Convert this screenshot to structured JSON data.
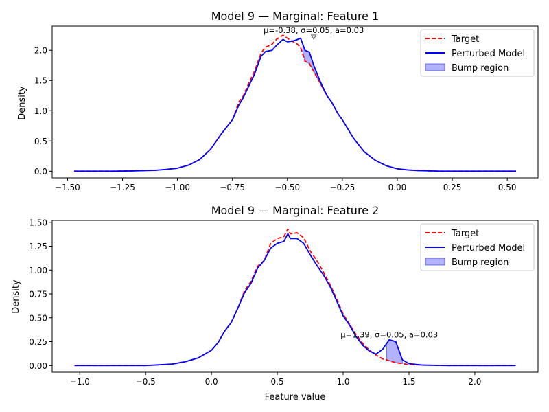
{
  "chart_data": [
    {
      "type": "line",
      "title": "Model 9 — Marginal: Feature 1",
      "xlabel": "",
      "ylabel": "Density",
      "xlim": [
        -1.57,
        0.64
      ],
      "ylim": [
        -0.11,
        2.4
      ],
      "xticks": [
        {
          "v": -1.5,
          "label": "−1.50"
        },
        {
          "v": -1.25,
          "label": "−1.25"
        },
        {
          "v": -1.0,
          "label": "−1.00"
        },
        {
          "v": -0.75,
          "label": "−0.75"
        },
        {
          "v": -0.5,
          "label": "−0.50"
        },
        {
          "v": -0.25,
          "label": "−0.25"
        },
        {
          "v": 0.0,
          "label": "0.00"
        },
        {
          "v": 0.25,
          "label": "0.25"
        },
        {
          "v": 0.5,
          "label": "0.50"
        }
      ],
      "yticks": [
        {
          "v": 0.0,
          "label": "0.0"
        },
        {
          "v": 0.5,
          "label": "0.5"
        },
        {
          "v": 1.0,
          "label": "1.0"
        },
        {
          "v": 1.5,
          "label": "1.5"
        },
        {
          "v": 2.0,
          "label": "2.0"
        }
      ],
      "series": [
        {
          "name": "Target",
          "color": "#ff0000",
          "dash": true,
          "x": [
            -1.47,
            -1.3,
            -1.2,
            -1.1,
            -1.05,
            -1.0,
            -0.95,
            -0.9,
            -0.85,
            -0.8,
            -0.75,
            -0.72,
            -0.7,
            -0.67,
            -0.65,
            -0.62,
            -0.6,
            -0.57,
            -0.55,
            -0.52,
            -0.5,
            -0.48,
            -0.46,
            -0.44,
            -0.42,
            -0.4,
            -0.38,
            -0.35,
            -0.32,
            -0.3,
            -0.27,
            -0.25,
            -0.2,
            -0.15,
            -0.1,
            -0.05,
            0.0,
            0.05,
            0.1,
            0.2,
            0.3,
            0.4,
            0.54
          ],
          "y": [
            0.0,
            0.0,
            0.005,
            0.015,
            0.03,
            0.05,
            0.1,
            0.19,
            0.36,
            0.62,
            0.85,
            1.15,
            1.25,
            1.5,
            1.65,
            1.95,
            2.05,
            2.1,
            2.18,
            2.25,
            2.2,
            2.15,
            2.12,
            2.05,
            1.82,
            1.78,
            1.65,
            1.45,
            1.25,
            1.15,
            0.95,
            0.85,
            0.55,
            0.32,
            0.18,
            0.09,
            0.04,
            0.02,
            0.01,
            0.0,
            0.0,
            0.0,
            0.0
          ]
        },
        {
          "name": "Perturbed Model",
          "color": "#0000ff",
          "dash": false,
          "x": [
            -1.47,
            -1.3,
            -1.2,
            -1.1,
            -1.05,
            -1.0,
            -0.95,
            -0.9,
            -0.85,
            -0.8,
            -0.75,
            -0.72,
            -0.7,
            -0.67,
            -0.65,
            -0.62,
            -0.6,
            -0.57,
            -0.55,
            -0.52,
            -0.5,
            -0.48,
            -0.46,
            -0.44,
            -0.42,
            -0.4,
            -0.38,
            -0.35,
            -0.32,
            -0.3,
            -0.27,
            -0.25,
            -0.2,
            -0.15,
            -0.1,
            -0.05,
            0.0,
            0.05,
            0.1,
            0.2,
            0.3,
            0.4,
            0.54
          ],
          "y": [
            0.0,
            0.0,
            0.005,
            0.015,
            0.03,
            0.05,
            0.1,
            0.19,
            0.36,
            0.62,
            0.85,
            1.1,
            1.22,
            1.45,
            1.6,
            1.9,
            1.98,
            2.0,
            2.08,
            2.18,
            2.14,
            2.15,
            2.17,
            2.2,
            2.0,
            1.97,
            1.75,
            1.48,
            1.25,
            1.15,
            0.95,
            0.85,
            0.55,
            0.32,
            0.18,
            0.09,
            0.04,
            0.02,
            0.01,
            0.0,
            0.0,
            0.0,
            0.0
          ]
        }
      ],
      "bump_region": {
        "name": "Bump region",
        "color": "#0000ff",
        "opacity": 0.3,
        "x": [
          -0.43,
          -0.42,
          -0.4,
          -0.38,
          -0.35,
          -0.33
        ],
        "lower": [
          1.98,
          1.82,
          1.78,
          1.65,
          1.45,
          1.3
        ],
        "upper": [
          2.12,
          2.0,
          1.97,
          1.75,
          1.48,
          1.3
        ]
      },
      "annotation": {
        "text": "μ=-0.38, σ=0.05, a=0.03",
        "x": -0.38,
        "y": 2.22,
        "arrow": true
      },
      "legend": {
        "placement": "top-right",
        "entries": [
          "Target",
          "Perturbed Model",
          "Bump region"
        ]
      }
    },
    {
      "type": "line",
      "title": "Model 9 — Marginal: Feature 2",
      "xlabel": "Feature value",
      "ylabel": "Density",
      "xlim": [
        -1.21,
        2.48
      ],
      "ylim": [
        -0.07,
        1.52
      ],
      "xticks": [
        {
          "v": -1.0,
          "label": "−1.0"
        },
        {
          "v": -0.5,
          "label": "−0.5"
        },
        {
          "v": 0.0,
          "label": "0.0"
        },
        {
          "v": 0.5,
          "label": "0.5"
        },
        {
          "v": 1.0,
          "label": "1.0"
        },
        {
          "v": 1.5,
          "label": "1.5"
        },
        {
          "v": 2.0,
          "label": "2.0"
        }
      ],
      "yticks": [
        {
          "v": 0.0,
          "label": "0.00"
        },
        {
          "v": 0.25,
          "label": "0.25"
        },
        {
          "v": 0.5,
          "label": "0.50"
        },
        {
          "v": 0.75,
          "label": "0.75"
        },
        {
          "v": 1.0,
          "label": "1.00"
        },
        {
          "v": 1.25,
          "label": "1.25"
        },
        {
          "v": 1.5,
          "label": "1.50"
        }
      ],
      "series": [
        {
          "name": "Target",
          "color": "#ff0000",
          "dash": true,
          "x": [
            -1.04,
            -0.5,
            -0.3,
            -0.2,
            -0.1,
            0.0,
            0.05,
            0.1,
            0.15,
            0.2,
            0.25,
            0.3,
            0.35,
            0.4,
            0.45,
            0.5,
            0.55,
            0.58,
            0.6,
            0.65,
            0.7,
            0.75,
            0.8,
            0.85,
            0.9,
            0.95,
            1.0,
            1.05,
            1.1,
            1.15,
            1.2,
            1.25,
            1.3,
            1.35,
            1.4,
            1.45,
            1.5,
            1.6,
            1.8,
            2.0,
            2.31
          ],
          "y": [
            0.0,
            0.0,
            0.015,
            0.04,
            0.08,
            0.16,
            0.24,
            0.36,
            0.45,
            0.6,
            0.78,
            0.88,
            1.04,
            1.1,
            1.28,
            1.33,
            1.35,
            1.43,
            1.38,
            1.39,
            1.34,
            1.2,
            1.1,
            0.98,
            0.85,
            0.7,
            0.54,
            0.43,
            0.32,
            0.23,
            0.16,
            0.11,
            0.07,
            0.05,
            0.03,
            0.02,
            0.01,
            0.005,
            0.0,
            0.0,
            0.0
          ]
        },
        {
          "name": "Perturbed Model",
          "color": "#0000ff",
          "dash": false,
          "x": [
            -1.04,
            -0.5,
            -0.3,
            -0.2,
            -0.1,
            0.0,
            0.05,
            0.1,
            0.15,
            0.2,
            0.25,
            0.3,
            0.35,
            0.4,
            0.45,
            0.5,
            0.55,
            0.58,
            0.6,
            0.65,
            0.7,
            0.75,
            0.8,
            0.85,
            0.9,
            0.95,
            1.0,
            1.05,
            1.1,
            1.15,
            1.2,
            1.25,
            1.3,
            1.35,
            1.4,
            1.45,
            1.5,
            1.6,
            1.8,
            2.0,
            2.31
          ],
          "y": [
            0.0,
            0.0,
            0.015,
            0.04,
            0.08,
            0.16,
            0.24,
            0.36,
            0.45,
            0.6,
            0.76,
            0.86,
            1.02,
            1.1,
            1.23,
            1.28,
            1.3,
            1.38,
            1.33,
            1.33,
            1.28,
            1.16,
            1.05,
            0.95,
            0.83,
            0.68,
            0.52,
            0.42,
            0.3,
            0.21,
            0.15,
            0.12,
            0.17,
            0.27,
            0.25,
            0.06,
            0.02,
            0.005,
            0.0,
            0.0,
            0.0
          ]
        }
      ],
      "bump_region": {
        "name": "Bump region",
        "color": "#0000ff",
        "opacity": 0.3,
        "x": [
          1.33,
          1.35,
          1.4,
          1.45
        ],
        "lower": [
          0.055,
          0.05,
          0.03,
          0.02
        ],
        "upper": [
          0.23,
          0.27,
          0.25,
          0.06
        ]
      },
      "annotation": {
        "text": "μ=1.39, σ=0.05, a=0.03",
        "x": 0.98,
        "y": 0.28,
        "arrow": false
      },
      "legend": {
        "placement": "top-right",
        "entries": [
          "Target",
          "Perturbed Model",
          "Bump region"
        ]
      }
    }
  ]
}
